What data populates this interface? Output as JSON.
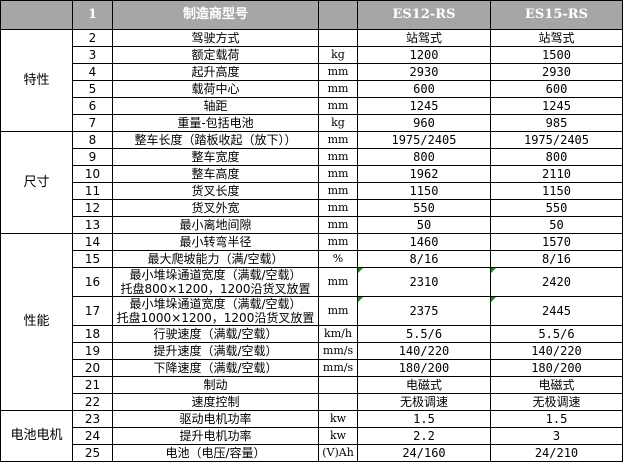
{
  "header": {
    "no": "1",
    "name": "制造商型号",
    "unit": "",
    "model_a": "ES12-RS",
    "model_b": "ES15-RS"
  },
  "groups": [
    "特性",
    "尺寸",
    "性能",
    "电池电机"
  ],
  "rows": [
    {
      "no": "2",
      "name": "驾驶方式",
      "unit": "",
      "a": "站驾式",
      "b": "站驾式"
    },
    {
      "no": "3",
      "name": "额定载荷",
      "unit": "kg",
      "a": "1200",
      "b": "1500"
    },
    {
      "no": "4",
      "name": "起升高度",
      "unit": "mm",
      "a": "2930",
      "b": "2930"
    },
    {
      "no": "5",
      "name": "载荷中心",
      "unit": "mm",
      "a": "600",
      "b": "600"
    },
    {
      "no": "6",
      "name": "轴距",
      "unit": "mm",
      "a": "1245",
      "b": "1245"
    },
    {
      "no": "7",
      "name": "重量-包括电池",
      "unit": "kg",
      "a": "960",
      "b": "985"
    },
    {
      "no": "8",
      "name": "整车长度（踏板收起（放下））",
      "unit": "mm",
      "a": "1975/2405",
      "b": "1975/2405"
    },
    {
      "no": "9",
      "name": "整车宽度",
      "unit": "mm",
      "a": "800",
      "b": "800"
    },
    {
      "no": "10",
      "name": "整车高度",
      "unit": "mm",
      "a": "1962",
      "b": "2110"
    },
    {
      "no": "11",
      "name": "货叉长度",
      "unit": "mm",
      "a": "1150",
      "b": "1150"
    },
    {
      "no": "12",
      "name": "货叉外宽",
      "unit": "mm",
      "a": "550",
      "b": "550"
    },
    {
      "no": "13",
      "name": "最小离地间隙",
      "unit": "mm",
      "a": "50",
      "b": "50"
    },
    {
      "no": "14",
      "name": "最小转弯半径",
      "unit": "mm",
      "a": "1460",
      "b": "1570"
    },
    {
      "no": "15",
      "name": "最大爬坡能力（满/空载）",
      "unit": "%",
      "a": "8/16",
      "b": "8/16"
    },
    {
      "no": "16",
      "name": "最小堆垛通道宽度（满载/空载）",
      "name2": "托盘800×1200，1200沿货叉放置",
      "unit": "mm",
      "a": "2310",
      "b": "2420"
    },
    {
      "no": "17",
      "name": "最小堆垛通道宽度（满载/空载）",
      "name2": "托盘1000×1200，1200沿货叉放置",
      "unit": "mm",
      "a": "2375",
      "b": "2445"
    },
    {
      "no": "18",
      "name": "行驶速度（满载/空载）",
      "unit": "km/h",
      "a": "5.5/6",
      "b": "5.5/6"
    },
    {
      "no": "19",
      "name": "提升速度（满载/空载）",
      "unit": "mm/s",
      "a": "140/220",
      "b": "140/220"
    },
    {
      "no": "20",
      "name": "下降速度（满载/空载）",
      "unit": "mm/s",
      "a": "180/200",
      "b": "180/200"
    },
    {
      "no": "21",
      "name": "制动",
      "unit": "",
      "a": "电磁式",
      "b": "电磁式"
    },
    {
      "no": "22",
      "name": "速度控制",
      "unit": "",
      "a": "无极调速",
      "b": "无极调速"
    },
    {
      "no": "23",
      "name": "驱动电机功率",
      "unit": "kw",
      "a": "1.5",
      "b": "1.5"
    },
    {
      "no": "24",
      "name": "提升电机功率",
      "unit": "kw",
      "a": "2.2",
      "b": "3"
    },
    {
      "no": "25",
      "name": "电池（电压/容量）",
      "unit": "(V)Ah",
      "a": "24/160",
      "b": "24/210"
    }
  ]
}
